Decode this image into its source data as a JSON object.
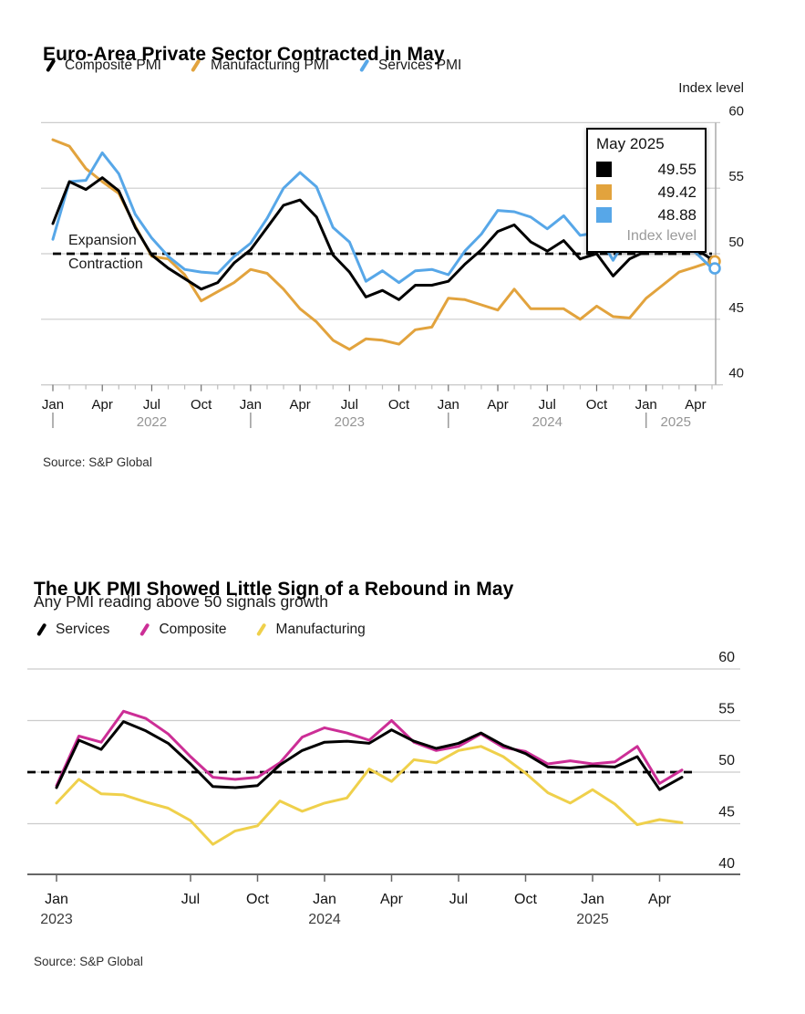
{
  "page": {
    "background": "#ffffff"
  },
  "chart_data": [
    {
      "type": "line",
      "title": "Euro-Area Private Sector Contracted in May",
      "axis_title": "Index level",
      "source": "Source: S&P Global",
      "x_range": [
        "Jan 2022",
        "May 2025"
      ],
      "x_frequency": "monthly",
      "ylim": [
        40,
        60
      ],
      "y_ticks": [
        60,
        55,
        50,
        45,
        40
      ],
      "grid": "horizontal",
      "legend_position": "top",
      "threshold": 50,
      "threshold_labels": {
        "above": "Expansion",
        "below": "Contraction"
      },
      "x_ticks": [
        {
          "i": 0,
          "label": "Jan"
        },
        {
          "i": 3,
          "label": "Apr"
        },
        {
          "i": 6,
          "label": "Jul"
        },
        {
          "i": 9,
          "label": "Oct"
        },
        {
          "i": 12,
          "label": "Jan"
        },
        {
          "i": 15,
          "label": "Apr"
        },
        {
          "i": 18,
          "label": "Jul"
        },
        {
          "i": 21,
          "label": "Oct"
        },
        {
          "i": 24,
          "label": "Jan"
        },
        {
          "i": 27,
          "label": "Apr"
        },
        {
          "i": 30,
          "label": "Jul"
        },
        {
          "i": 33,
          "label": "Oct"
        },
        {
          "i": 36,
          "label": "Jan"
        },
        {
          "i": 39,
          "label": "Apr"
        }
      ],
      "x_year_separators": [
        0,
        12,
        24,
        36
      ],
      "x_years": [
        {
          "i": 6,
          "label": "2022"
        },
        {
          "i": 18,
          "label": "2023"
        },
        {
          "i": 30,
          "label": "2024"
        },
        {
          "i": 37.8,
          "label": "2025"
        }
      ],
      "series": [
        {
          "name": "Composite PMI",
          "color": "#000000",
          "marker": "dot",
          "values": [
            52.3,
            55.5,
            54.9,
            55.8,
            54.8,
            52.0,
            49.9,
            48.9,
            48.1,
            47.3,
            47.8,
            49.3,
            50.3,
            52.0,
            53.7,
            54.1,
            52.8,
            49.9,
            48.6,
            46.7,
            47.2,
            46.5,
            47.6,
            47.6,
            47.9,
            49.2,
            50.3,
            51.7,
            52.2,
            50.9,
            50.2,
            51.0,
            49.6,
            50.0,
            48.3,
            49.6,
            50.2,
            50.2,
            50.9,
            50.4,
            49.55
          ]
        },
        {
          "name": "Manufacturing PMI",
          "color": "#E2A33D",
          "marker": "ring",
          "values": [
            58.7,
            58.2,
            56.5,
            55.5,
            54.6,
            52.1,
            49.8,
            49.6,
            48.4,
            46.4,
            47.1,
            47.8,
            48.8,
            48.5,
            47.3,
            45.8,
            44.8,
            43.4,
            42.7,
            43.5,
            43.4,
            43.1,
            44.2,
            44.4,
            46.6,
            46.5,
            46.1,
            45.7,
            47.3,
            45.8,
            45.8,
            45.8,
            45.0,
            46.0,
            45.2,
            45.1,
            46.6,
            47.6,
            48.6,
            49.0,
            49.42
          ]
        },
        {
          "name": "Services PMI",
          "color": "#57A7E8",
          "marker": "ring",
          "values": [
            51.1,
            55.5,
            55.6,
            57.7,
            56.1,
            53.0,
            51.2,
            49.8,
            48.8,
            48.6,
            48.5,
            49.8,
            50.8,
            52.7,
            55.0,
            56.2,
            55.1,
            52.0,
            50.9,
            47.9,
            48.7,
            47.8,
            48.7,
            48.8,
            48.4,
            50.2,
            51.5,
            53.3,
            53.2,
            52.8,
            51.9,
            52.9,
            51.4,
            51.6,
            49.5,
            51.6,
            51.3,
            50.6,
            51.0,
            50.1,
            48.88
          ]
        }
      ],
      "draw_order": [
        1,
        2,
        0
      ],
      "crosshair_month": "May 2025",
      "tooltip": {
        "title": "May 2025",
        "rows": [
          {
            "color": "#000000",
            "value": "49.55"
          },
          {
            "color": "#E2A33D",
            "value": "49.42"
          },
          {
            "color": "#57A7E8",
            "value": "48.88"
          }
        ],
        "footer": "Index level"
      }
    },
    {
      "type": "line",
      "title": "The UK PMI Showed Little Sign of a Rebound in May",
      "subtitle": "Any PMI reading above 50 signals growth",
      "source": "Source: S&P Global",
      "x_range": [
        "Jan 2023",
        "May 2025"
      ],
      "x_frequency": "monthly",
      "ylim": [
        40,
        60
      ],
      "y_ticks": [
        60,
        55,
        50,
        45,
        40
      ],
      "grid": "horizontal",
      "legend_position": "top",
      "threshold": 50,
      "x_ticks": [
        {
          "i": 0,
          "label": "Jan"
        },
        {
          "i": 6,
          "label": "Jul"
        },
        {
          "i": 9,
          "label": "Oct"
        },
        {
          "i": 12,
          "label": "Jan"
        },
        {
          "i": 15,
          "label": "Apr"
        },
        {
          "i": 18,
          "label": "Jul"
        },
        {
          "i": 21,
          "label": "Oct"
        },
        {
          "i": 24,
          "label": "Jan"
        },
        {
          "i": 27,
          "label": "Apr"
        }
      ],
      "x_years": [
        {
          "i": 0,
          "label": "2023"
        },
        {
          "i": 12,
          "label": "2024"
        },
        {
          "i": 24,
          "label": "2025"
        }
      ],
      "series": [
        {
          "name": "Services",
          "color": "#000000",
          "values": [
            48.5,
            53.1,
            52.2,
            54.9,
            54.0,
            52.8,
            50.8,
            48.6,
            48.5,
            48.7,
            50.7,
            52.1,
            52.9,
            53.0,
            52.8,
            54.1,
            53.0,
            52.3,
            52.8,
            53.8,
            52.6,
            51.8,
            50.5,
            50.4,
            50.6,
            50.5,
            51.5,
            48.3,
            49.5
          ]
        },
        {
          "name": "Composite",
          "color": "#CC2E96",
          "values": [
            48.7,
            53.5,
            52.9,
            55.9,
            55.2,
            53.7,
            51.5,
            49.5,
            49.3,
            49.5,
            50.9,
            53.4,
            54.3,
            53.8,
            53.1,
            55.0,
            52.9,
            52.1,
            52.5,
            53.7,
            52.4,
            52.0,
            50.8,
            51.1,
            50.8,
            51.0,
            52.5,
            48.9,
            50.2
          ]
        },
        {
          "name": "Manufacturing",
          "color": "#EFD04B",
          "values": [
            47.0,
            49.3,
            47.9,
            47.8,
            47.1,
            46.5,
            45.3,
            43.0,
            44.3,
            44.8,
            47.2,
            46.2,
            47.0,
            47.5,
            50.3,
            49.1,
            51.2,
            50.9,
            52.1,
            52.5,
            51.5,
            49.9,
            48.0,
            47.0,
            48.3,
            46.9,
            44.9,
            45.4,
            45.1
          ]
        }
      ],
      "draw_order": [
        2,
        1,
        0
      ]
    }
  ]
}
